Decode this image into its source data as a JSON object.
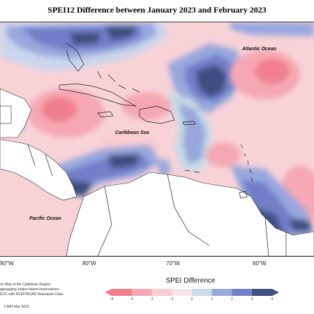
{
  "title": "SPEI12 Difference between January 2023 and February 2023",
  "map": {
    "labels": {
      "atlantic": "Atlantic Ocean",
      "caribbean": "Caribbean Sea",
      "pacific": "Pacific Ocean"
    },
    "longitude_labels": [
      "90°W",
      "80°W",
      "70°W",
      "60°W"
    ]
  },
  "credit": {
    "lines": [
      "on Map of the Caribbean Region",
      "ggregating station based observations,",
      "ECF, with NCEP/NCAR Reanalysis Data."
    ],
    "footnote": "CIMH Mar-2023"
  },
  "legend": {
    "title": "SPEI Difference",
    "ticks": [
      "-4",
      "-3",
      "-2",
      "-1",
      "0",
      "1",
      "2",
      "3",
      "4"
    ],
    "colors": [
      "#f07f8e",
      "#f5a8b3",
      "#f9cdd3",
      "#fbe4e7",
      "#e6f0f3",
      "#c7dbe6",
      "#98a8de",
      "#6f7fc8",
      "#3e4f80"
    ]
  }
}
